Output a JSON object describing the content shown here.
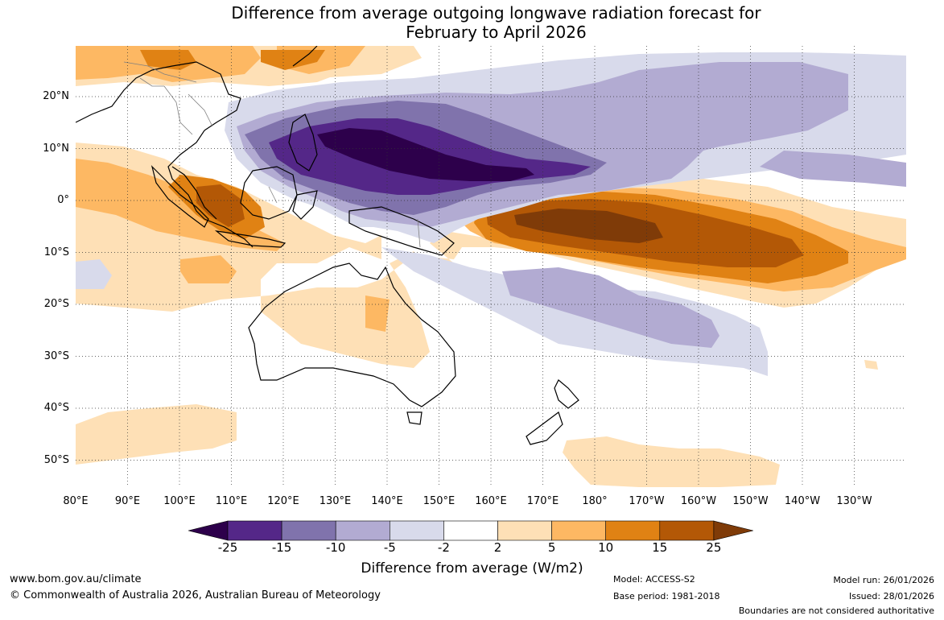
{
  "title_line1": "Difference from average outgoing longwave radiation forecast for",
  "title_line2": "February to April 2026",
  "lat_labels": [
    "20°N",
    "10°N",
    "0°",
    "10°S",
    "20°S",
    "30°S",
    "40°S",
    "50°S"
  ],
  "lon_labels": [
    "80°E",
    "90°E",
    "100°E",
    "110°E",
    "120°E",
    "130°E",
    "140°E",
    "150°E",
    "160°E",
    "170°E",
    "180°",
    "170°W",
    "160°W",
    "150°W",
    "140°W",
    "130°W"
  ],
  "colorbar": {
    "ticks": [
      "-25",
      "-15",
      "-10",
      "-5",
      "-2",
      "2",
      "5",
      "10",
      "15",
      "25"
    ],
    "colors": [
      "#2d004b",
      "#542788",
      "#8073ac",
      "#b2abd2",
      "#d8daeb",
      "#ffffff",
      "#fee0b6",
      "#fdb863",
      "#e08214",
      "#b35806",
      "#7f3b08"
    ],
    "title": "Difference from average (W/m2)"
  },
  "footer": {
    "url": "www.bom.gov.au/climate",
    "copyright": "© Commonwealth of Australia 2026, Australian Bureau of Meteorology",
    "model": "Model: ACCESS-S2",
    "base_period": "Base period: 1981-2018",
    "model_run": "Model run: 26/01/2026",
    "issued": "Issued: 28/01/2026",
    "disclaimer": "Boundaries are not considered authoritative"
  }
}
